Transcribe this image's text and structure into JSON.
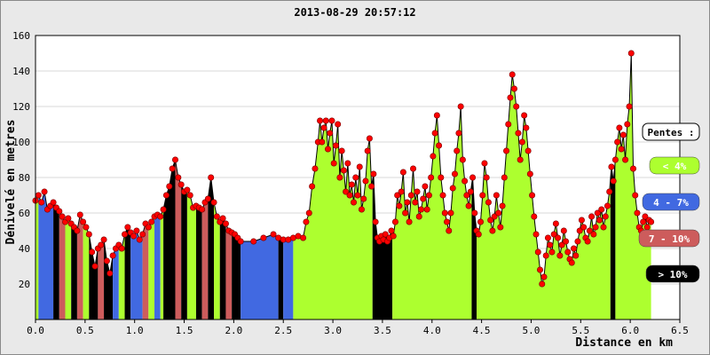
{
  "chart_data": {
    "type": "area",
    "title": "2013-08-29 20:57:12",
    "xlabel": "Distance en km",
    "ylabel": "Dénivelé en metres",
    "xlim": [
      0,
      6.5
    ],
    "ylim": [
      0,
      160
    ],
    "x_ticks": [
      "0.0",
      "0.5",
      "1.0",
      "1.5",
      "2.0",
      "2.5",
      "3.0",
      "3.5",
      "4.0",
      "4.5",
      "5.0",
      "5.5",
      "6.0",
      "6.5"
    ],
    "y_ticks": [
      "20",
      "40",
      "60",
      "80",
      "100",
      "120",
      "140",
      "160"
    ],
    "grid": true,
    "legend": {
      "title": "Pentes :",
      "placement": "right",
      "items": [
        {
          "label": "< 4%",
          "color": "#adff2f",
          "text_color": "#ffffff"
        },
        {
          "label": "4 - 7%",
          "color": "#4169e1",
          "text_color": "#ffffff"
        },
        {
          "label": "7 - 10%",
          "color": "#cd5c5c",
          "text_color": "#ffffff"
        },
        {
          "label": "> 10%",
          "color": "#000000",
          "text_color": "#ffffff"
        }
      ]
    },
    "colors": {
      "lt4": "#adff2f",
      "4to7": "#4169e1",
      "7to10": "#cd5c5c",
      "gt10": "#000000",
      "points": "#ff0000"
    },
    "profile": [
      [
        0.0,
        67
      ],
      [
        0.03,
        70
      ],
      [
        0.06,
        66
      ],
      [
        0.09,
        72
      ],
      [
        0.12,
        62
      ],
      [
        0.15,
        64
      ],
      [
        0.18,
        66
      ],
      [
        0.21,
        63
      ],
      [
        0.24,
        61
      ],
      [
        0.27,
        58
      ],
      [
        0.3,
        55
      ],
      [
        0.33,
        57
      ],
      [
        0.36,
        54
      ],
      [
        0.39,
        52
      ],
      [
        0.42,
        50
      ],
      [
        0.45,
        59
      ],
      [
        0.48,
        55
      ],
      [
        0.51,
        52
      ],
      [
        0.54,
        48
      ],
      [
        0.57,
        38
      ],
      [
        0.6,
        30
      ],
      [
        0.63,
        40
      ],
      [
        0.66,
        42
      ],
      [
        0.69,
        45
      ],
      [
        0.72,
        33
      ],
      [
        0.75,
        26
      ],
      [
        0.78,
        36
      ],
      [
        0.81,
        40
      ],
      [
        0.84,
        42
      ],
      [
        0.87,
        40
      ],
      [
        0.9,
        48
      ],
      [
        0.93,
        52
      ],
      [
        0.96,
        49
      ],
      [
        0.99,
        47
      ],
      [
        1.02,
        50
      ],
      [
        1.05,
        45
      ],
      [
        1.08,
        48
      ],
      [
        1.11,
        54
      ],
      [
        1.14,
        52
      ],
      [
        1.17,
        55
      ],
      [
        1.2,
        58
      ],
      [
        1.23,
        59
      ],
      [
        1.26,
        58
      ],
      [
        1.29,
        62
      ],
      [
        1.32,
        70
      ],
      [
        1.35,
        75
      ],
      [
        1.38,
        85
      ],
      [
        1.41,
        90
      ],
      [
        1.44,
        80
      ],
      [
        1.47,
        76
      ],
      [
        1.5,
        72
      ],
      [
        1.53,
        73
      ],
      [
        1.56,
        70
      ],
      [
        1.59,
        63
      ],
      [
        1.62,
        64
      ],
      [
        1.65,
        63
      ],
      [
        1.68,
        62
      ],
      [
        1.71,
        66
      ],
      [
        1.74,
        68
      ],
      [
        1.77,
        80
      ],
      [
        1.8,
        66
      ],
      [
        1.83,
        58
      ],
      [
        1.86,
        55
      ],
      [
        1.89,
        57
      ],
      [
        1.92,
        54
      ],
      [
        1.95,
        50
      ],
      [
        1.98,
        49
      ],
      [
        2.01,
        48
      ],
      [
        2.04,
        46
      ],
      [
        2.07,
        44
      ],
      [
        2.2,
        44
      ],
      [
        2.3,
        46
      ],
      [
        2.4,
        48
      ],
      [
        2.45,
        46
      ],
      [
        2.5,
        45
      ],
      [
        2.55,
        45
      ],
      [
        2.6,
        46
      ],
      [
        2.65,
        47
      ],
      [
        2.7,
        46
      ],
      [
        2.73,
        55
      ],
      [
        2.76,
        60
      ],
      [
        2.79,
        75
      ],
      [
        2.82,
        85
      ],
      [
        2.85,
        100
      ],
      [
        2.87,
        112
      ],
      [
        2.89,
        100
      ],
      [
        2.91,
        108
      ],
      [
        2.93,
        112
      ],
      [
        2.95,
        96
      ],
      [
        2.97,
        105
      ],
      [
        2.99,
        112
      ],
      [
        3.01,
        88
      ],
      [
        3.03,
        98
      ],
      [
        3.05,
        110
      ],
      [
        3.07,
        80
      ],
      [
        3.09,
        95
      ],
      [
        3.11,
        84
      ],
      [
        3.13,
        72
      ],
      [
        3.15,
        88
      ],
      [
        3.17,
        70
      ],
      [
        3.19,
        76
      ],
      [
        3.21,
        66
      ],
      [
        3.23,
        80
      ],
      [
        3.25,
        70
      ],
      [
        3.27,
        86
      ],
      [
        3.29,
        62
      ],
      [
        3.31,
        68
      ],
      [
        3.33,
        78
      ],
      [
        3.35,
        95
      ],
      [
        3.37,
        102
      ],
      [
        3.39,
        75
      ],
      [
        3.41,
        82
      ],
      [
        3.43,
        55
      ],
      [
        3.45,
        46
      ],
      [
        3.47,
        44
      ],
      [
        3.49,
        47
      ],
      [
        3.51,
        45
      ],
      [
        3.53,
        48
      ],
      [
        3.55,
        44
      ],
      [
        3.57,
        46
      ],
      [
        3.59,
        50
      ],
      [
        3.61,
        47
      ],
      [
        3.63,
        55
      ],
      [
        3.65,
        70
      ],
      [
        3.67,
        64
      ],
      [
        3.69,
        72
      ],
      [
        3.71,
        83
      ],
      [
        3.73,
        60
      ],
      [
        3.75,
        66
      ],
      [
        3.77,
        55
      ],
      [
        3.79,
        70
      ],
      [
        3.81,
        85
      ],
      [
        3.83,
        66
      ],
      [
        3.85,
        72
      ],
      [
        3.87,
        58
      ],
      [
        3.89,
        62
      ],
      [
        3.91,
        68
      ],
      [
        3.93,
        75
      ],
      [
        3.95,
        62
      ],
      [
        3.97,
        70
      ],
      [
        3.99,
        80
      ],
      [
        4.01,
        92
      ],
      [
        4.03,
        105
      ],
      [
        4.05,
        115
      ],
      [
        4.07,
        98
      ],
      [
        4.09,
        80
      ],
      [
        4.11,
        70
      ],
      [
        4.13,
        60
      ],
      [
        4.15,
        55
      ],
      [
        4.17,
        50
      ],
      [
        4.19,
        60
      ],
      [
        4.21,
        74
      ],
      [
        4.23,
        82
      ],
      [
        4.25,
        95
      ],
      [
        4.27,
        105
      ],
      [
        4.29,
        120
      ],
      [
        4.31,
        90
      ],
      [
        4.33,
        78
      ],
      [
        4.35,
        70
      ],
      [
        4.37,
        64
      ],
      [
        4.39,
        72
      ],
      [
        4.41,
        80
      ],
      [
        4.43,
        60
      ],
      [
        4.45,
        50
      ],
      [
        4.47,
        48
      ],
      [
        4.49,
        55
      ],
      [
        4.51,
        70
      ],
      [
        4.53,
        88
      ],
      [
        4.55,
        80
      ],
      [
        4.57,
        66
      ],
      [
        4.59,
        56
      ],
      [
        4.61,
        50
      ],
      [
        4.63,
        58
      ],
      [
        4.65,
        70
      ],
      [
        4.67,
        60
      ],
      [
        4.69,
        52
      ],
      [
        4.71,
        64
      ],
      [
        4.73,
        80
      ],
      [
        4.75,
        95
      ],
      [
        4.77,
        110
      ],
      [
        4.79,
        125
      ],
      [
        4.81,
        138
      ],
      [
        4.83,
        130
      ],
      [
        4.85,
        120
      ],
      [
        4.87,
        105
      ],
      [
        4.89,
        90
      ],
      [
        4.91,
        100
      ],
      [
        4.93,
        115
      ],
      [
        4.95,
        108
      ],
      [
        4.97,
        95
      ],
      [
        4.99,
        82
      ],
      [
        5.01,
        70
      ],
      [
        5.03,
        58
      ],
      [
        5.05,
        48
      ],
      [
        5.07,
        38
      ],
      [
        5.09,
        28
      ],
      [
        5.11,
        20
      ],
      [
        5.13,
        24
      ],
      [
        5.15,
        36
      ],
      [
        5.17,
        46
      ],
      [
        5.19,
        42
      ],
      [
        5.21,
        38
      ],
      [
        5.23,
        48
      ],
      [
        5.25,
        54
      ],
      [
        5.27,
        46
      ],
      [
        5.29,
        36
      ],
      [
        5.31,
        42
      ],
      [
        5.33,
        50
      ],
      [
        5.35,
        44
      ],
      [
        5.37,
        38
      ],
      [
        5.39,
        34
      ],
      [
        5.41,
        32
      ],
      [
        5.43,
        40
      ],
      [
        5.45,
        36
      ],
      [
        5.47,
        44
      ],
      [
        5.49,
        50
      ],
      [
        5.51,
        56
      ],
      [
        5.53,
        52
      ],
      [
        5.55,
        46
      ],
      [
        5.57,
        44
      ],
      [
        5.59,
        50
      ],
      [
        5.61,
        58
      ],
      [
        5.63,
        48
      ],
      [
        5.65,
        52
      ],
      [
        5.67,
        60
      ],
      [
        5.69,
        56
      ],
      [
        5.71,
        62
      ],
      [
        5.73,
        52
      ],
      [
        5.75,
        58
      ],
      [
        5.77,
        64
      ],
      [
        5.79,
        72
      ],
      [
        5.81,
        86
      ],
      [
        5.83,
        78
      ],
      [
        5.85,
        90
      ],
      [
        5.87,
        100
      ],
      [
        5.89,
        108
      ],
      [
        5.91,
        96
      ],
      [
        5.93,
        104
      ],
      [
        5.95,
        90
      ],
      [
        5.97,
        110
      ],
      [
        5.99,
        120
      ],
      [
        6.01,
        150
      ],
      [
        6.03,
        85
      ],
      [
        6.05,
        70
      ],
      [
        6.07,
        60
      ],
      [
        6.09,
        52
      ],
      [
        6.11,
        50
      ],
      [
        6.13,
        55
      ],
      [
        6.15,
        58
      ],
      [
        6.17,
        52
      ],
      [
        6.19,
        56
      ],
      [
        6.21,
        55
      ]
    ],
    "slope_segments": [
      {
        "from": 0.0,
        "to": 0.03,
        "class": "lt4"
      },
      {
        "from": 0.03,
        "to": 0.18,
        "class": "4to7"
      },
      {
        "from": 0.18,
        "to": 0.24,
        "class": "gt10"
      },
      {
        "from": 0.24,
        "to": 0.3,
        "class": "7to10"
      },
      {
        "from": 0.3,
        "to": 0.36,
        "class": "lt4"
      },
      {
        "from": 0.36,
        "to": 0.42,
        "class": "gt10"
      },
      {
        "from": 0.42,
        "to": 0.48,
        "class": "7to10"
      },
      {
        "from": 0.48,
        "to": 0.54,
        "class": "lt4"
      },
      {
        "from": 0.54,
        "to": 0.63,
        "class": "gt10"
      },
      {
        "from": 0.63,
        "to": 0.69,
        "class": "7to10"
      },
      {
        "from": 0.69,
        "to": 0.78,
        "class": "gt10"
      },
      {
        "from": 0.78,
        "to": 0.84,
        "class": "4to7"
      },
      {
        "from": 0.84,
        "to": 0.9,
        "class": "lt4"
      },
      {
        "from": 0.9,
        "to": 0.96,
        "class": "gt10"
      },
      {
        "from": 0.96,
        "to": 1.08,
        "class": "4to7"
      },
      {
        "from": 1.08,
        "to": 1.14,
        "class": "7to10"
      },
      {
        "from": 1.14,
        "to": 1.2,
        "class": "lt4"
      },
      {
        "from": 1.2,
        "to": 1.26,
        "class": "4to7"
      },
      {
        "from": 1.26,
        "to": 1.29,
        "class": "lt4"
      },
      {
        "from": 1.29,
        "to": 1.41,
        "class": "gt10"
      },
      {
        "from": 1.41,
        "to": 1.47,
        "class": "7to10"
      },
      {
        "from": 1.47,
        "to": 1.53,
        "class": "gt10"
      },
      {
        "from": 1.53,
        "to": 1.62,
        "class": "lt4"
      },
      {
        "from": 1.62,
        "to": 1.68,
        "class": "gt10"
      },
      {
        "from": 1.68,
        "to": 1.74,
        "class": "7to10"
      },
      {
        "from": 1.74,
        "to": 1.8,
        "class": "gt10"
      },
      {
        "from": 1.8,
        "to": 1.86,
        "class": "lt4"
      },
      {
        "from": 1.86,
        "to": 1.92,
        "class": "gt10"
      },
      {
        "from": 1.92,
        "to": 1.98,
        "class": "7to10"
      },
      {
        "from": 1.98,
        "to": 2.07,
        "class": "gt10"
      },
      {
        "from": 2.07,
        "to": 2.45,
        "class": "4to7"
      },
      {
        "from": 2.45,
        "to": 2.5,
        "class": "gt10"
      },
      {
        "from": 2.5,
        "to": 2.6,
        "class": "4to7"
      },
      {
        "from": 2.6,
        "to": 3.4,
        "class": "lt4"
      },
      {
        "from": 3.4,
        "to": 3.6,
        "class": "gt10"
      },
      {
        "from": 3.6,
        "to": 4.4,
        "class": "lt4"
      },
      {
        "from": 4.4,
        "to": 4.45,
        "class": "gt10"
      },
      {
        "from": 4.45,
        "to": 5.8,
        "class": "lt4"
      },
      {
        "from": 5.8,
        "to": 5.85,
        "class": "gt10"
      },
      {
        "from": 5.85,
        "to": 6.21,
        "class": "lt4"
      }
    ]
  }
}
